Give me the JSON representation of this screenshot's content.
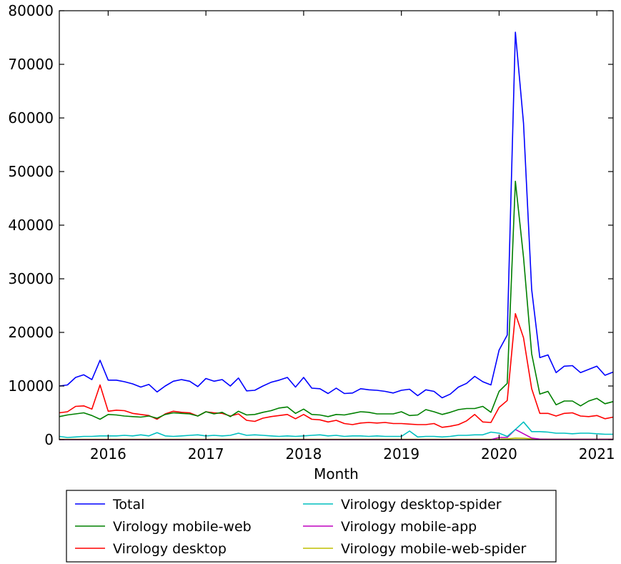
{
  "chart_data": {
    "type": "line",
    "title": "",
    "xlabel": "Month",
    "ylabel": "",
    "xlim": [
      "2015-07",
      "2021-03"
    ],
    "ylim": [
      0,
      80000
    ],
    "x_ticks": [
      "2016",
      "2017",
      "2018",
      "2019",
      "2020",
      "2021"
    ],
    "y_ticks": [
      "0",
      "10000",
      "20000",
      "30000",
      "40000",
      "50000",
      "60000",
      "70000",
      "80000"
    ],
    "grid": false,
    "legend_position": "below",
    "x": [
      "2015-07",
      "2015-08",
      "2015-09",
      "2015-10",
      "2015-11",
      "2015-12",
      "2016-01",
      "2016-02",
      "2016-03",
      "2016-04",
      "2016-05",
      "2016-06",
      "2016-07",
      "2016-08",
      "2016-09",
      "2016-10",
      "2016-11",
      "2016-12",
      "2017-01",
      "2017-02",
      "2017-03",
      "2017-04",
      "2017-05",
      "2017-06",
      "2017-07",
      "2017-08",
      "2017-09",
      "2017-10",
      "2017-11",
      "2017-12",
      "2018-01",
      "2018-02",
      "2018-03",
      "2018-04",
      "2018-05",
      "2018-06",
      "2018-07",
      "2018-08",
      "2018-09",
      "2018-10",
      "2018-11",
      "2018-12",
      "2019-01",
      "2019-02",
      "2019-03",
      "2019-04",
      "2019-05",
      "2019-06",
      "2019-07",
      "2019-08",
      "2019-09",
      "2019-10",
      "2019-11",
      "2019-12",
      "2020-01",
      "2020-02",
      "2020-03",
      "2020-04",
      "2020-05",
      "2020-06",
      "2020-07",
      "2020-08",
      "2020-09",
      "2020-10",
      "2020-11",
      "2020-12",
      "2021-01",
      "2021-02",
      "2021-03"
    ],
    "series": [
      {
        "name": "Total",
        "color": "#0000ff",
        "values": [
          10000,
          10200,
          11600,
          12100,
          11200,
          14800,
          11100,
          11100,
          10800,
          10400,
          9800,
          10300,
          8900,
          10000,
          10900,
          11200,
          10900,
          9900,
          11400,
          10900,
          11200,
          10000,
          11500,
          9100,
          9200,
          10000,
          10700,
          11100,
          11600,
          9800,
          11600,
          9600,
          9500,
          8600,
          9600,
          8600,
          8700,
          9500,
          9300,
          9200,
          9000,
          8700,
          9200,
          9400,
          8200,
          9300,
          9000,
          7800,
          8500,
          9800,
          10500,
          11800,
          10800,
          10200,
          16700,
          19500,
          76000,
          59000,
          28000,
          15300,
          15800,
          12500,
          13700,
          13800,
          12500,
          13100,
          13700,
          12000,
          12600
        ]
      },
      {
        "name": "Virology mobile-web",
        "color": "#008000",
        "values": [
          4300,
          4600,
          4800,
          5000,
          4500,
          3800,
          4700,
          4600,
          4400,
          4300,
          4200,
          4400,
          4000,
          4700,
          5000,
          4900,
          4800,
          4400,
          5200,
          4800,
          5100,
          4300,
          5300,
          4600,
          4700,
          5100,
          5400,
          5900,
          6100,
          4900,
          5700,
          4700,
          4600,
          4300,
          4700,
          4600,
          4900,
          5200,
          5100,
          4800,
          4800,
          4800,
          5200,
          4500,
          4600,
          5600,
          5200,
          4700,
          5100,
          5600,
          5800,
          5800,
          6200,
          5100,
          9000,
          10500,
          48200,
          34000,
          16000,
          8500,
          9000,
          6500,
          7200,
          7200,
          6300,
          7200,
          7700,
          6700,
          7100
        ]
      },
      {
        "name": "Virology desktop",
        "color": "#ff0000",
        "values": [
          5000,
          5200,
          6200,
          6300,
          5700,
          10200,
          5300,
          5500,
          5400,
          4900,
          4700,
          4500,
          3800,
          4800,
          5300,
          5100,
          5000,
          4400,
          5200,
          5000,
          4900,
          4400,
          4800,
          3600,
          3400,
          4000,
          4300,
          4500,
          4700,
          3900,
          4700,
          3800,
          3700,
          3300,
          3600,
          3000,
          2800,
          3100,
          3200,
          3100,
          3200,
          3000,
          3000,
          2900,
          2800,
          2800,
          3000,
          2300,
          2500,
          2800,
          3500,
          4700,
          3300,
          3200,
          6000,
          7300,
          23500,
          19000,
          9500,
          4900,
          4900,
          4400,
          4900,
          5000,
          4400,
          4300,
          4500,
          3900,
          4200
        ]
      },
      {
        "name": "Virology desktop-spider",
        "color": "#00bfbf",
        "values": [
          600,
          400,
          500,
          600,
          600,
          700,
          700,
          700,
          800,
          700,
          900,
          700,
          1300,
          700,
          600,
          700,
          800,
          900,
          700,
          800,
          700,
          800,
          1200,
          800,
          900,
          800,
          700,
          600,
          700,
          600,
          700,
          800,
          900,
          700,
          800,
          600,
          700,
          700,
          600,
          700,
          600,
          600,
          600,
          1600,
          500,
          600,
          600,
          500,
          600,
          800,
          800,
          900,
          900,
          1400,
          1200,
          600,
          1900,
          3300,
          1500,
          1500,
          1400,
          1200,
          1200,
          1100,
          1200,
          1200,
          1100,
          1000,
          1000
        ]
      },
      {
        "name": "Virology mobile-app",
        "color": "#bf00bf",
        "values": [
          0,
          0,
          0,
          0,
          0,
          0,
          0,
          0,
          0,
          0,
          0,
          0,
          0,
          0,
          0,
          0,
          0,
          0,
          0,
          0,
          0,
          0,
          0,
          0,
          0,
          0,
          0,
          0,
          0,
          0,
          0,
          0,
          0,
          0,
          0,
          0,
          0,
          0,
          0,
          0,
          0,
          0,
          0,
          0,
          0,
          0,
          0,
          0,
          0,
          0,
          0,
          0,
          0,
          0,
          400,
          400,
          1900,
          1100,
          300,
          100,
          50,
          50,
          50,
          50,
          50,
          50,
          50,
          50,
          50
        ]
      },
      {
        "name": "Virology mobile-web-spider",
        "color": "#bfbf00",
        "values": [
          50,
          50,
          50,
          50,
          50,
          50,
          50,
          50,
          50,
          50,
          50,
          50,
          50,
          50,
          50,
          50,
          50,
          50,
          50,
          50,
          50,
          50,
          50,
          50,
          50,
          50,
          50,
          50,
          50,
          50,
          50,
          50,
          50,
          50,
          50,
          50,
          50,
          50,
          50,
          50,
          50,
          50,
          50,
          50,
          50,
          50,
          50,
          50,
          50,
          50,
          50,
          50,
          50,
          50,
          100,
          150,
          300,
          250,
          150,
          100,
          100,
          100,
          100,
          100,
          100,
          100,
          100,
          100,
          100
        ]
      }
    ]
  }
}
